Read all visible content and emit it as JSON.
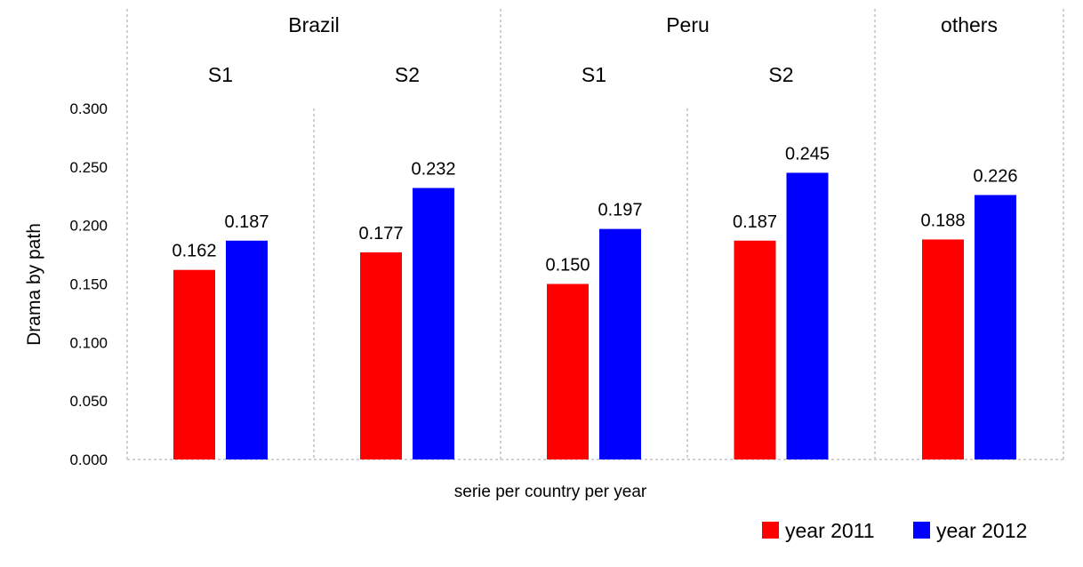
{
  "chart_data": {
    "type": "bar",
    "ylabel": "Drama by path",
    "xlabel": "serie per country per year",
    "ylim": [
      0,
      0.3
    ],
    "yticks": [
      "0.000",
      "0.050",
      "0.100",
      "0.150",
      "0.200",
      "0.250",
      "0.300"
    ],
    "ytick_values": [
      0,
      0.05,
      0.1,
      0.15,
      0.2,
      0.25,
      0.3
    ],
    "groups": [
      {
        "label": "Brazil",
        "subgroups": [
          "S1",
          "S2"
        ]
      },
      {
        "label": "Peru",
        "subgroups": [
          "S1",
          "S2"
        ]
      },
      {
        "label": "others",
        "subgroups": [
          ""
        ]
      }
    ],
    "series": [
      {
        "name": "year 2011",
        "color": "#ff0000",
        "values": [
          0.162,
          0.177,
          0.15,
          0.187,
          0.188
        ],
        "labels": [
          "0.162",
          "0.177",
          "0.150",
          "0.187",
          "0.188"
        ]
      },
      {
        "name": "year 2012",
        "color": "#0000ff",
        "values": [
          0.187,
          0.232,
          0.197,
          0.245,
          0.226
        ],
        "labels": [
          "0.187",
          "0.232",
          "0.197",
          "0.245",
          "0.226"
        ]
      }
    ],
    "legend_position": "bottom-right",
    "grid": false
  }
}
